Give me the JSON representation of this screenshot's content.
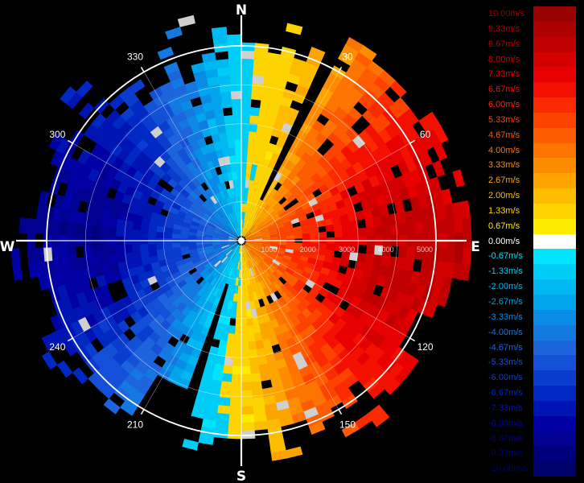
{
  "chart_data": {
    "type": "heatmap",
    "description_kind": "doppler-radial-velocity-ppi",
    "cardinals": [
      "N",
      "E",
      "S",
      "W"
    ],
    "azimuth_labels": [
      "30",
      "60",
      "120",
      "150",
      "210",
      "240",
      "300",
      "330"
    ],
    "range_labels": [
      "1000",
      "2000",
      "3000",
      "4000",
      "5000"
    ],
    "range_max": 5000,
    "velocity_unit": "m/s",
    "colorscale": {
      "min": -10,
      "max": 10,
      "labels": [
        "10.00m/s",
        "9.33m/s",
        "8.67m/s",
        "8.00m/s",
        "7.33m/s",
        "6.67m/s",
        "6.00m/s",
        "5.33m/s",
        "4.67m/s",
        "4.00m/s",
        "3.33m/s",
        "2.67m/s",
        "2.00m/s",
        "1.33m/s",
        "0.67m/s",
        "0.00m/s",
        "-0.67m/s",
        "-1.33m/s",
        "-2.00m/s",
        "-2.67m/s",
        "-3.33m/s",
        "-4.00m/s",
        "-4.67m/s",
        "-5.33m/s",
        "-6.00m/s",
        "-6.67m/s",
        "-7.33m/s",
        "-8.00m/s",
        "-8.67m/s",
        "-9.33m/s",
        "-10.00m/s"
      ],
      "colors": [
        "#990000",
        "#ad0000",
        "#c00000",
        "#d40000",
        "#e80000",
        "#f41000",
        "#fb2a00",
        "#fd4300",
        "#fe5c00",
        "#fe7400",
        "#fe8c00",
        "#fea400",
        "#febc00",
        "#fed400",
        "#feec00",
        "#ffffff",
        "#00e4ff",
        "#00cdf5",
        "#00b9f0",
        "#00a5eb",
        "#0a8ce6",
        "#1478e1",
        "#1e64dc",
        "#1450d7",
        "#0a3ccd",
        "#0028c3",
        "#0014b4",
        "#0000a5",
        "#000091",
        "#00007d",
        "#000069"
      ]
    }
  }
}
